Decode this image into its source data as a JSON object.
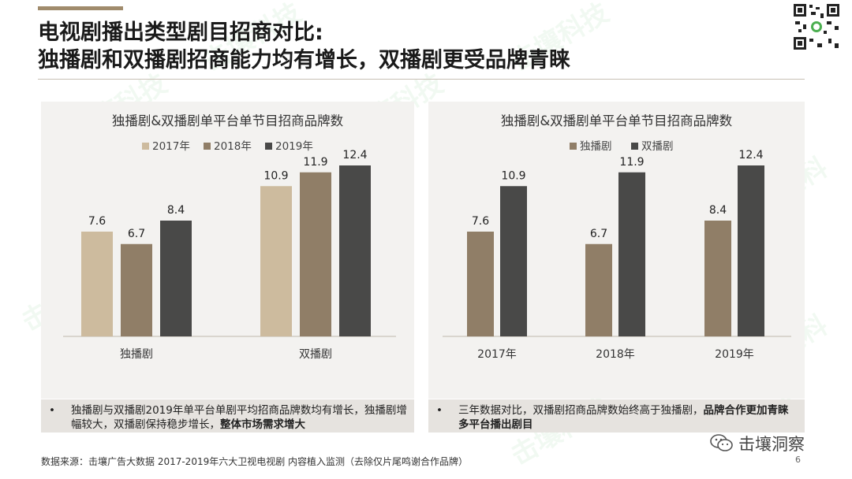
{
  "title": {
    "line1": "电视剧播出类型剧目招商对比:",
    "line2": "独播剧和双播剧招商能力均有增长，双播剧更受品牌青睐"
  },
  "watermark": "击壤科技",
  "colors": {
    "c2017": "#cdbb9e",
    "c2018": "#907e67",
    "c2019": "#494948",
    "dubo": "#907e67",
    "shuangbo": "#494948",
    "accent": "#a08b6c",
    "panel": "#f3f2f0"
  },
  "chart_data": [
    {
      "type": "bar",
      "title": "独播剧&双播剧单平台单节目招商品牌数",
      "categories": [
        "独播剧",
        "双播剧"
      ],
      "series": [
        {
          "name": "2017年",
          "values": [
            7.6,
            10.9
          ]
        },
        {
          "name": "2018年",
          "values": [
            6.7,
            11.9
          ]
        },
        {
          "name": "2019年",
          "values": [
            8.4,
            12.4
          ]
        }
      ],
      "ylim": [
        0,
        16
      ],
      "grid": false,
      "legend": "top"
    },
    {
      "type": "bar",
      "title": "独播剧&双播剧单平台单节目招商品牌数",
      "categories": [
        "2017年",
        "2018年",
        "2019年"
      ],
      "series": [
        {
          "name": "独播剧",
          "values": [
            7.6,
            6.7,
            8.4
          ]
        },
        {
          "name": "双播剧",
          "values": [
            10.9,
            11.9,
            12.4
          ]
        }
      ],
      "ylim": [
        0,
        16
      ],
      "grid": false,
      "legend": "top"
    }
  ],
  "notes": {
    "left": {
      "bullet": "•",
      "text": "独播剧与双播剧2019年单平台单剧平均招商品牌数均有增长，独播剧增幅较大，双播剧保持稳步增长，",
      "bold": "整体市场需求增大"
    },
    "right": {
      "bullet": "•",
      "text": "三年数据对比，双播剧招商品牌数始终高于独播剧，",
      "bold": "品牌合作更加青睐多平台播出剧目"
    }
  },
  "source": "数据来源：击壤广告大数据  2017-2019年六大卫视电视剧 内容植入监测（去除仅片尾鸣谢合作品牌）",
  "page_number": "6",
  "wechat": {
    "icon": "wechat-icon",
    "name": "击壤洞察"
  },
  "qr_icon": "qr-code-icon"
}
